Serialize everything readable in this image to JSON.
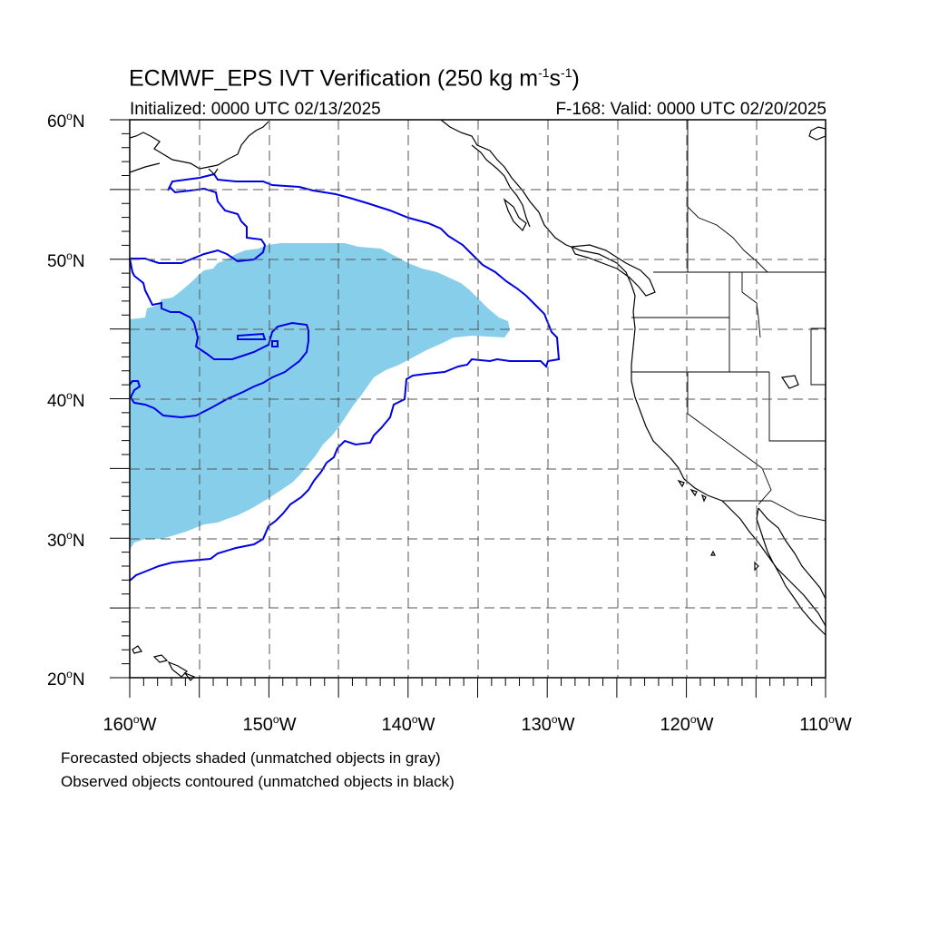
{
  "title": {
    "main": "ECMWF_EPS IVT Verification (250 kg m",
    "exp1": "-1",
    "mid": "s",
    "exp2": "-1",
    "end": ")"
  },
  "subtitle": {
    "initialized": "Initialized: 0000 UTC 02/13/2025",
    "valid": "F-168: Valid: 0000 UTC 02/20/2025"
  },
  "lat_labels": [
    {
      "value": "60",
      "hemi": "N"
    },
    {
      "value": "50",
      "hemi": "N"
    },
    {
      "value": "40",
      "hemi": "N"
    },
    {
      "value": "30",
      "hemi": "N"
    },
    {
      "value": "20",
      "hemi": "N"
    }
  ],
  "lon_labels": [
    {
      "value": "160",
      "hemi": "W"
    },
    {
      "value": "150",
      "hemi": "W"
    },
    {
      "value": "140",
      "hemi": "W"
    },
    {
      "value": "130",
      "hemi": "W"
    },
    {
      "value": "120",
      "hemi": "W"
    },
    {
      "value": "110",
      "hemi": "W"
    }
  ],
  "legend_notes": {
    "forecast": "Forecasted objects shaded (unmatched objects in gray)",
    "observed": "Observed objects contoured (unmatched objects in black)"
  },
  "colors": {
    "forecast_fill": "#87ceeb",
    "observed_contour": "#0000e6",
    "coastline": "#000000",
    "grid": "#555555"
  }
}
